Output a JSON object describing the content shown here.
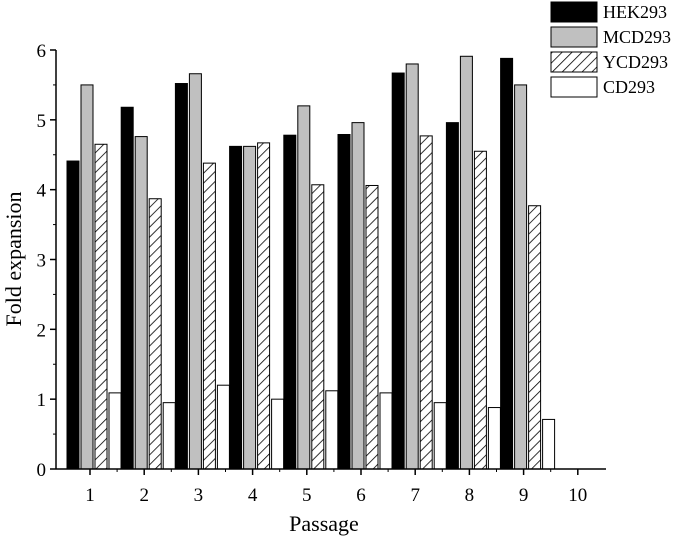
{
  "chart_data": {
    "type": "bar",
    "xlabel": "Passage",
    "ylabel": "Fold expansion",
    "categories": [
      "1",
      "2",
      "3",
      "4",
      "5",
      "6",
      "7",
      "8",
      "9",
      "10"
    ],
    "ylim": [
      0,
      6
    ],
    "yticks": [
      0,
      1,
      2,
      3,
      4,
      5,
      6
    ],
    "grid": false,
    "legend_position": "top-right",
    "series": [
      {
        "name": "HEK293",
        "fill": "solid",
        "color": "#000000",
        "values": [
          4.41,
          5.18,
          5.52,
          4.62,
          4.78,
          4.79,
          5.67,
          4.96,
          5.88,
          null
        ]
      },
      {
        "name": "MCD293",
        "fill": "solid",
        "color": "#c0c0c0",
        "values": [
          5.5,
          4.76,
          5.66,
          4.62,
          5.2,
          4.96,
          5.8,
          5.91,
          5.5,
          null
        ]
      },
      {
        "name": "YCD293",
        "fill": "hatch",
        "color": "#ffffff",
        "values": [
          4.65,
          3.87,
          4.38,
          4.67,
          4.07,
          4.06,
          4.77,
          4.55,
          3.77,
          null
        ]
      },
      {
        "name": "CD293",
        "fill": "solid",
        "color": "#ffffff",
        "values": [
          1.09,
          0.95,
          1.2,
          1.0,
          1.12,
          1.09,
          0.95,
          0.88,
          0.71,
          null
        ]
      }
    ]
  }
}
